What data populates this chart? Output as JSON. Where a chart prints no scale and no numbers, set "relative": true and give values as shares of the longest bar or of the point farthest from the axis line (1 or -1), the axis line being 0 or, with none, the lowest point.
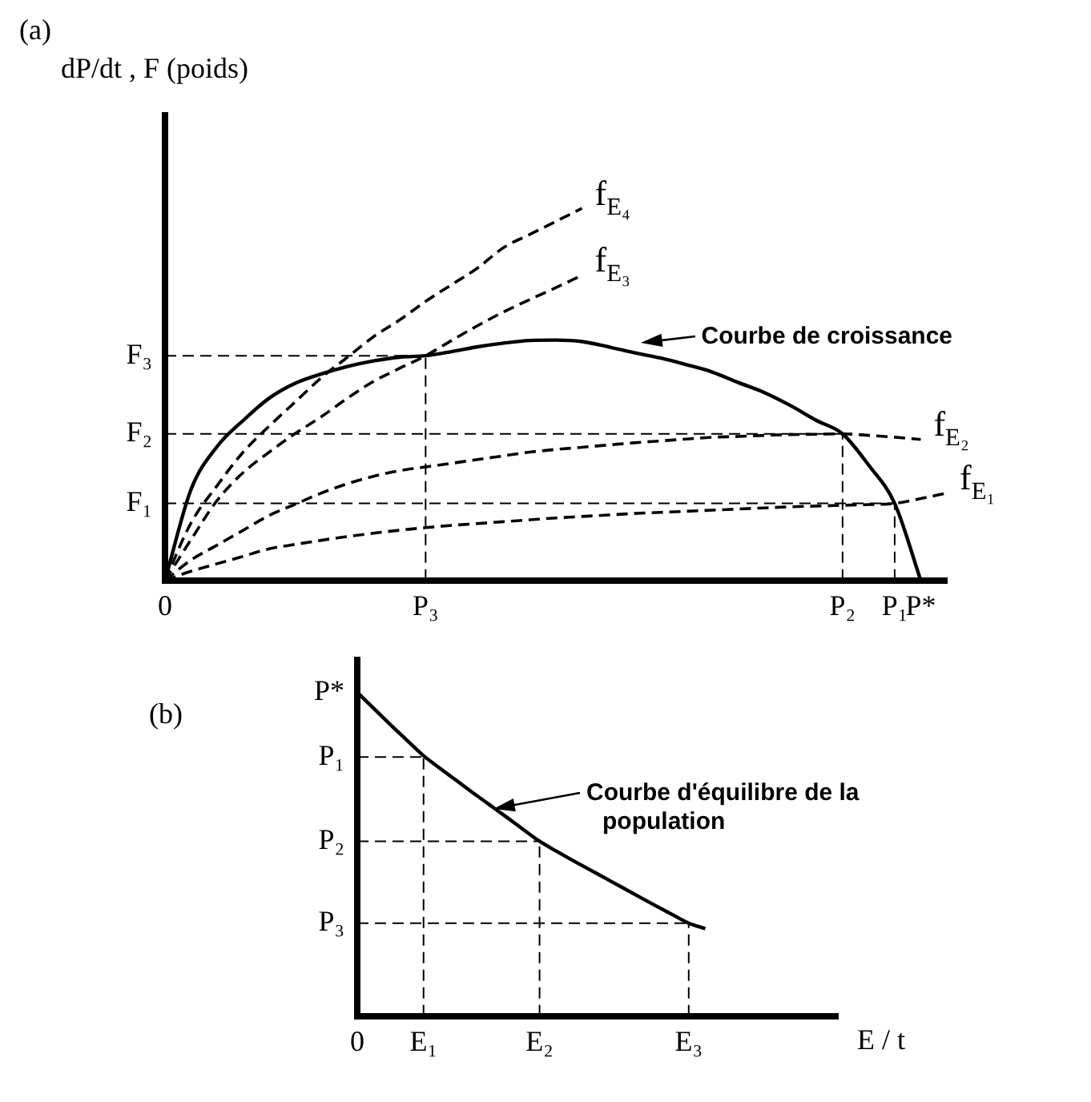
{
  "chart_data": [
    {
      "type": "line",
      "title": "(a)",
      "ylabel": "dP/dt , F (poids)",
      "relative": true,
      "marker": "none",
      "categories": [
        "0",
        null,
        null,
        null,
        null,
        null,
        null,
        null,
        null,
        null,
        "P₃",
        null,
        null,
        null,
        null,
        null,
        null,
        null,
        null,
        null,
        null,
        null,
        null,
        null,
        null,
        null,
        "P₂",
        null,
        "P₁",
        "P*",
        null
      ],
      "series": [
        {
          "color": "#000000",
          "line_style": "solid",
          "values": [
            0,
            0.245,
            0.36,
            0.43,
            0.49,
            0.53,
            0.555,
            0.575,
            0.59,
            0.6,
            0.604,
            0.615,
            0.628,
            0.638,
            0.645,
            0.646,
            0.642,
            0.628,
            0.612,
            0.598,
            0.58,
            0.56,
            0.532,
            0.505,
            0.47,
            0.43,
            0.394,
            0.31,
            0.207,
            0,
            null
          ]
        },
        {
          "name": "f$_{E₄}$",
          "color": "#000000",
          "line_style": "dashed",
          "values": [
            0,
            0.155,
            0.255,
            0.345,
            0.415,
            0.48,
            0.545,
            0.6,
            0.655,
            0.7,
            0.75,
            0.795,
            0.84,
            0.895,
            0.93,
            0.965,
            1,
            null,
            null,
            null,
            null,
            null,
            null,
            null,
            null,
            null,
            null,
            null,
            null,
            null,
            null
          ]
        },
        {
          "name": "f$_{E₃}$",
          "color": "#000000",
          "line_style": "dashed",
          "values": [
            0,
            0.11,
            0.215,
            0.29,
            0.345,
            0.395,
            0.44,
            0.49,
            0.535,
            0.57,
            0.604,
            0.645,
            0.685,
            0.722,
            0.755,
            0.787,
            0.82,
            null,
            null,
            null,
            null,
            null,
            null,
            null,
            null,
            null,
            null,
            null,
            null,
            null,
            null
          ]
        },
        {
          "name": "f$_{E₂}$",
          "color": "#000000",
          "line_style": "dashed",
          "values": [
            0,
            0.055,
            0.095,
            0.135,
            0.175,
            0.205,
            0.235,
            0.26,
            0.28,
            0.295,
            0.305,
            0.315,
            0.325,
            0.335,
            0.345,
            0.352,
            0.358,
            0.364,
            0.37,
            0.375,
            0.38,
            0.385,
            0.387,
            0.39,
            0.392,
            0.393,
            0.394,
            0.39,
            0.385,
            0.379,
            null
          ]
        },
        {
          "name": "f$_{E₁}$",
          "color": "#000000",
          "line_style": "dashed",
          "values": [
            0,
            0.025,
            0.045,
            0.065,
            0.085,
            0.097,
            0.108,
            0.118,
            0.127,
            0.135,
            0.142,
            0.148,
            0.153,
            0.158,
            0.163,
            0.168,
            0.172,
            0.176,
            0.18,
            0.183,
            0.186,
            0.189,
            0.192,
            0.195,
            0.198,
            0.2,
            0.202,
            0.204,
            0.207,
            0.22,
            0.235
          ]
        }
      ],
      "ref_lines": [
        {
          "axis": "y",
          "value": 0.207,
          "label": "F₁",
          "line_style": "dashed"
        },
        {
          "axis": "y",
          "value": 0.394,
          "label": "F₂",
          "line_style": "dashed"
        },
        {
          "axis": "y",
          "value": 0.604,
          "label": "F₃",
          "line_style": "dashed"
        },
        {
          "axis": "x",
          "value": "P₁",
          "line_style": "dashed"
        },
        {
          "axis": "x",
          "value": "P₂",
          "line_style": "dashed"
        },
        {
          "axis": "x",
          "value": "P₃",
          "line_style": "dashed"
        }
      ],
      "annotations": [
        "Courbe de croissance"
      ]
    },
    {
      "type": "line",
      "title": "(b)",
      "xlabel": "E / t",
      "relative": true,
      "marker": "none",
      "categories": [
        "0",
        null,
        null,
        null,
        "E₁",
        null,
        null,
        null,
        null,
        null,
        null,
        "E₂",
        null,
        null,
        null,
        null,
        null,
        null,
        null,
        null,
        "E₃",
        null,
        null,
        null,
        null,
        null,
        null,
        null,
        null,
        null
      ],
      "series": [
        {
          "color": "#000000",
          "line_style": "solid",
          "values": [
            1,
            0.95,
            0.9,
            0.852,
            0.804,
            0.765,
            0.727,
            0.689,
            0.652,
            0.615,
            0.577,
            0.54,
            0.51,
            0.481,
            0.453,
            0.425,
            0.397,
            0.369,
            0.341,
            0.314,
            0.287,
            0.27,
            null,
            null,
            null,
            null,
            null,
            null,
            null,
            null
          ]
        }
      ],
      "ref_lines": [
        {
          "axis": "y",
          "value": 0.8,
          "label": "P₁",
          "line_style": "dashed"
        },
        {
          "axis": "y",
          "value": 0.54,
          "label": "P₂",
          "line_style": "dashed"
        },
        {
          "axis": "y",
          "value": 0.287,
          "label": "P₃",
          "line_style": "dashed"
        },
        {
          "axis": "x",
          "value": "E₁",
          "line_style": "dashed"
        },
        {
          "axis": "x",
          "value": "E₂",
          "line_style": "dashed"
        },
        {
          "axis": "x",
          "value": "E₃",
          "line_style": "dashed"
        }
      ],
      "annotations": [
        "P*",
        "Courbe d'équilibre de la population"
      ]
    }
  ]
}
